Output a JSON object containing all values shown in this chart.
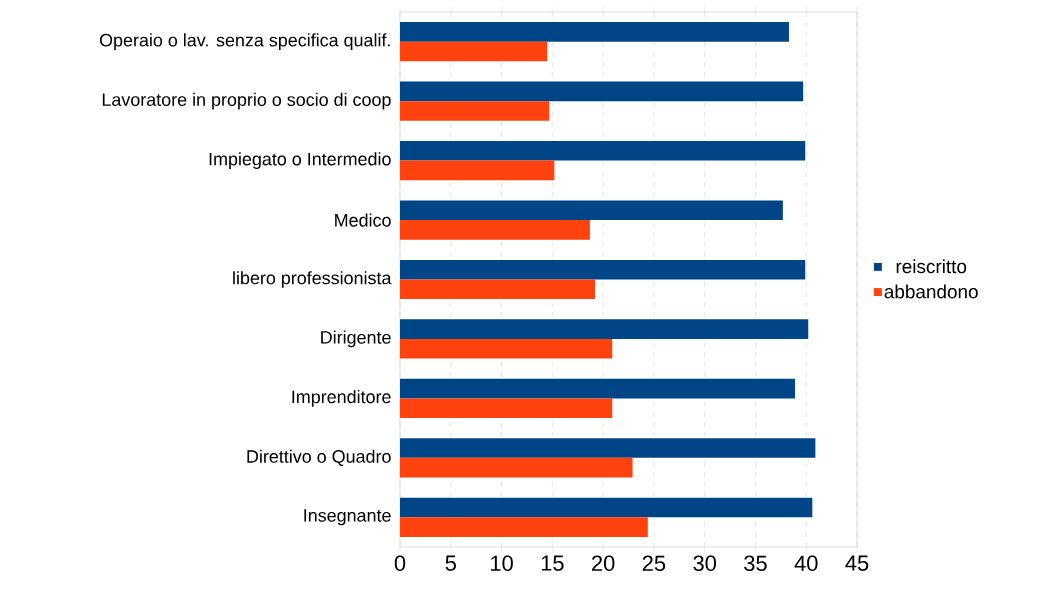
{
  "chart_data": {
    "type": "bar",
    "orientation": "horizontal",
    "categories": [
      "Operaio o lav. senza specifica qualif.",
      "Lavoratore in proprio o socio di coop",
      "Impiegato o Intermedio",
      "Medico",
      "libero professionista",
      "Dirigente",
      "Imprenditore",
      "Direttivo o Quadro",
      "Insegnante"
    ],
    "series": [
      {
        "name": "reiscritto",
        "color": "#004586",
        "values": [
          38.3,
          39.7,
          39.9,
          37.7,
          39.9,
          40.2,
          38.9,
          40.9,
          40.6
        ]
      },
      {
        "name": "abbandono",
        "color": "#ff420e",
        "values": [
          14.5,
          14.7,
          15.2,
          18.7,
          19.2,
          20.9,
          20.9,
          22.9,
          24.4
        ]
      }
    ],
    "xlim": [
      0,
      45
    ],
    "xticks": [
      0,
      5,
      10,
      15,
      20,
      25,
      30,
      35,
      40,
      45
    ],
    "grid": "x",
    "legend": "right"
  }
}
